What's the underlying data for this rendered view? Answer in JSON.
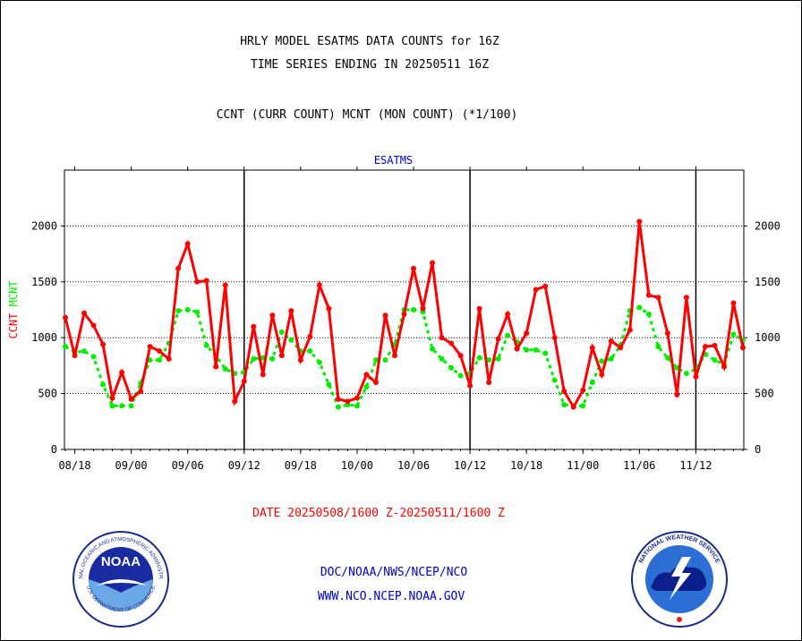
{
  "header": {
    "line1": "HRLY MODEL ESATMS DATA COUNTS for 16Z",
    "line2": "TIME SERIES ENDING IN 20250511 16Z",
    "line3": "CCNT (CURR COUNT) MCNT (MON COUNT) (*1/100)"
  },
  "footer": {
    "date_range": "DATE 20250508/1600 Z-20250511/1600 Z",
    "org": "DOC/NOAA/NWS/NCEP/NCO",
    "url": "WWW.NCO.NCEP.NOAA.GOV"
  },
  "logos": {
    "noaa_text": "NOAA",
    "noaa_ring": "NATIONAL OCEANIC AND ATMOSPHERIC ADMINISTRATION",
    "noaa_ring_bottom": "U.S. DEPARTMENT OF COMMERCE",
    "nws_ring": "NATIONAL WEATHER SERVICE"
  },
  "colors": {
    "ccnt": "#ff0000",
    "mcnt": "#00ee00",
    "title_blue": "#0000cc",
    "footer_red": "#ff0000",
    "footer_blue": "#0000cc"
  },
  "chart_data": {
    "type": "line",
    "title": "ESATMS",
    "ylabel_ccnt": "CCNT",
    "ylabel_mcnt": "MCNT",
    "ylim": [
      0,
      2500
    ],
    "yticks": [
      0,
      500,
      1000,
      1500,
      2000
    ],
    "ytick_labels": [
      "0",
      "500",
      "1000",
      "1500",
      "2000"
    ],
    "xtick_labels": [
      "08/18",
      "09/00",
      "09/06",
      "09/12",
      "09/18",
      "10/00",
      "10/06",
      "10/12",
      "10/18",
      "11/00",
      "11/06",
      "11/12"
    ],
    "grid": true,
    "series": [
      {
        "name": "CCNT",
        "values": [
          1180,
          840,
          1220,
          1110,
          940,
          460,
          690,
          450,
          520,
          920,
          880,
          810,
          1620,
          1840,
          1500,
          1510,
          740,
          1470,
          430,
          610,
          1100,
          670,
          1200,
          840,
          1240,
          800,
          1010,
          1470,
          1260,
          450,
          430,
          460,
          670,
          600,
          1200,
          840,
          1210,
          1620,
          1260,
          1670,
          1000,
          950,
          840,
          570,
          1260,
          600,
          990,
          1210,
          900,
          1040,
          1430,
          1460,
          1000,
          520,
          380,
          530,
          910,
          670,
          970,
          910,
          1070,
          2040,
          1380,
          1360,
          1040,
          490,
          1360,
          650,
          920,
          930,
          740,
          1310,
          910
        ]
      },
      {
        "name": "MCNT",
        "values": [
          920,
          870,
          880,
          830,
          580,
          390,
          390,
          390,
          590,
          800,
          800,
          950,
          1240,
          1250,
          1230,
          930,
          840,
          720,
          680,
          690,
          810,
          820,
          810,
          1050,
          980,
          880,
          880,
          780,
          580,
          380,
          400,
          390,
          560,
          800,
          800,
          940,
          1250,
          1250,
          1230,
          900,
          810,
          730,
          660,
          680,
          820,
          800,
          810,
          1020,
          960,
          890,
          890,
          860,
          620,
          400,
          390,
          390,
          600,
          790,
          810,
          930,
          1240,
          1270,
          1210,
          920,
          820,
          730,
          680,
          720,
          850,
          800,
          760,
          1030,
          980
        ]
      }
    ]
  }
}
